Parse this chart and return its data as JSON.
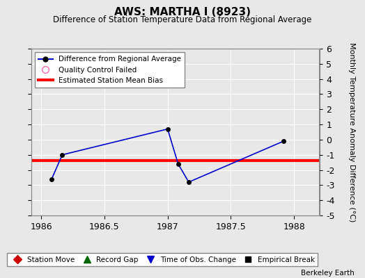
{
  "title": "AWS: MARTHA I (8923)",
  "subtitle": "Difference of Station Temperature Data from Regional Average",
  "ylabel_right": "Monthly Temperature Anomaly Difference (°C)",
  "footer": "Berkeley Earth",
  "line_x": [
    1986.083,
    1986.167,
    1987.0,
    1987.083,
    1987.167,
    1987.917
  ],
  "line_y": [
    -2.6,
    -1.0,
    0.7,
    -1.6,
    -2.8,
    -0.1
  ],
  "bias_y": -1.4,
  "xlim": [
    1985.92,
    1988.2
  ],
  "ylim": [
    -5,
    6
  ],
  "yticks": [
    -5,
    -4,
    -3,
    -2,
    -1,
    0,
    1,
    2,
    3,
    4,
    5,
    6
  ],
  "line_color": "#0000cc",
  "line_marker_color": "#000000",
  "line_marker_size": 4,
  "line_width": 1.2,
  "bias_color": "#ff0000",
  "bias_linewidth": 3,
  "bg_color": "#e8e8e8",
  "plot_bg_color": "#e8e8e8",
  "grid_color": "#ffffff",
  "xticks": [
    1986,
    1986.5,
    1987,
    1987.5,
    1988
  ],
  "xtick_labels": [
    "1986",
    "1986.5",
    "1987",
    "1987.5",
    "1988"
  ]
}
